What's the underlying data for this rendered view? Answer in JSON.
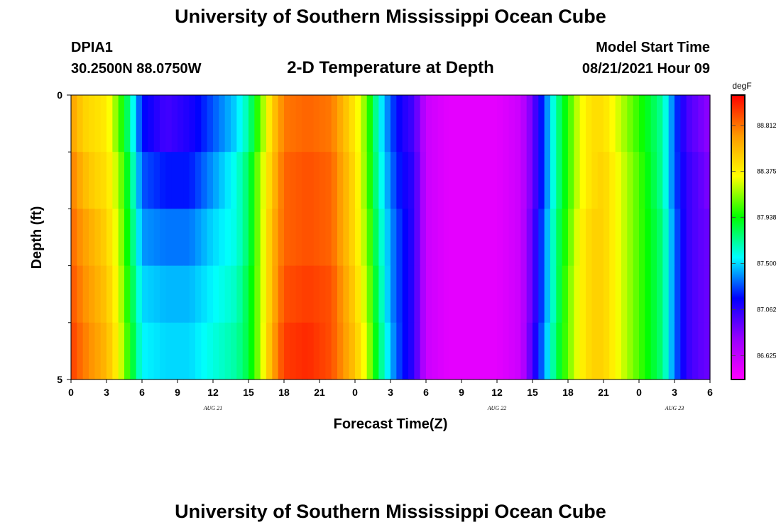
{
  "header": {
    "main_title": "University of Southern Mississippi Ocean Cube",
    "station_id": "DPIA1",
    "coordinates": "30.2500N  88.0750W",
    "plot_title": "2-D Temperature at Depth",
    "model_start_label": "Model Start Time",
    "model_start_value": "08/21/2021 Hour 09"
  },
  "footer": {
    "title": "University of Southern Mississippi Ocean Cube"
  },
  "chart_data": {
    "type": "heatmap",
    "title": "2-D Temperature at Depth",
    "xlabel": "Forecast Time(Z)",
    "ylabel": "Depth (ft)",
    "x_range_hours": [
      0,
      54
    ],
    "x_tick_labels": [
      "0",
      "3",
      "6",
      "9",
      "12",
      "15",
      "18",
      "21",
      "0",
      "3",
      "6",
      "9",
      "12",
      "15",
      "18",
      "21",
      "0",
      "3",
      "6"
    ],
    "date_labels": [
      {
        "text": "AUG 21",
        "hour": 12
      },
      {
        "text": "AUG 22",
        "hour": 36
      },
      {
        "text": "AUG 23",
        "hour": 51
      }
    ],
    "y_range": [
      0,
      5
    ],
    "y_tick_labels": [
      "0",
      "5"
    ],
    "y_minor_ticks": [
      1,
      2,
      3,
      4
    ],
    "depth_layers": [
      0.5,
      1.5,
      2.5,
      3.5,
      4.5
    ],
    "colorbar": {
      "unit": "degF",
      "min": 86.4,
      "max": 89.1,
      "tick_labels": [
        "88.812",
        "88.375",
        "87.938",
        "87.500",
        "87.062",
        "86.625"
      ],
      "tick_values": [
        88.812,
        88.375,
        87.938,
        87.5,
        87.062,
        86.625
      ],
      "colors": [
        "#ff00ff",
        "#9900ff",
        "#0000ff",
        "#00ffff",
        "#00ff00",
        "#ffff00",
        "#ff9900",
        "#ff0000"
      ]
    },
    "temperature_keyframes": {
      "hours": [
        0,
        1,
        2,
        3,
        4,
        5,
        6,
        8,
        10,
        12,
        14,
        15,
        16,
        17,
        18,
        20,
        22,
        24,
        25,
        26,
        27,
        28,
        29,
        30,
        32,
        34,
        36,
        38,
        39,
        40,
        41,
        42,
        43,
        44,
        45,
        46,
        48,
        50,
        51,
        52,
        53,
        54
      ],
      "layers": [
        [
          88.7,
          88.5,
          88.45,
          88.4,
          88.1,
          87.7,
          87.2,
          87.0,
          87.1,
          87.3,
          87.5,
          87.7,
          88.1,
          88.5,
          88.8,
          88.85,
          88.8,
          88.4,
          88.1,
          87.6,
          87.3,
          87.1,
          87.0,
          86.6,
          86.5,
          86.5,
          86.5,
          86.6,
          86.9,
          87.3,
          87.7,
          88.0,
          88.3,
          88.45,
          88.45,
          88.3,
          88.0,
          87.7,
          87.3,
          87.0,
          86.9,
          86.8
        ],
        [
          88.8,
          88.6,
          88.5,
          88.45,
          88.2,
          87.8,
          87.3,
          87.2,
          87.2,
          87.4,
          87.6,
          87.8,
          88.2,
          88.55,
          88.85,
          88.9,
          88.85,
          88.45,
          88.1,
          87.65,
          87.35,
          87.15,
          87.05,
          86.6,
          86.5,
          86.5,
          86.5,
          86.6,
          86.9,
          87.3,
          87.7,
          88.0,
          88.3,
          88.45,
          88.5,
          88.35,
          88.05,
          87.7,
          87.3,
          87.05,
          86.95,
          86.85
        ],
        [
          88.85,
          88.7,
          88.6,
          88.5,
          88.25,
          87.85,
          87.4,
          87.35,
          87.35,
          87.5,
          87.6,
          87.8,
          88.2,
          88.6,
          88.85,
          88.9,
          88.85,
          88.45,
          88.15,
          87.7,
          87.4,
          87.2,
          87.05,
          86.6,
          86.5,
          86.5,
          86.5,
          86.6,
          86.95,
          87.35,
          87.75,
          88.05,
          88.35,
          88.5,
          88.5,
          88.35,
          88.05,
          87.75,
          87.35,
          87.05,
          86.95,
          86.9
        ],
        [
          88.9,
          88.75,
          88.65,
          88.55,
          88.3,
          87.9,
          87.5,
          87.45,
          87.45,
          87.55,
          87.65,
          87.85,
          88.2,
          88.6,
          88.9,
          88.95,
          88.9,
          88.5,
          88.2,
          87.75,
          87.4,
          87.2,
          87.05,
          86.6,
          86.5,
          86.5,
          86.5,
          86.6,
          86.95,
          87.35,
          87.75,
          88.1,
          88.35,
          88.5,
          88.5,
          88.35,
          88.05,
          87.75,
          87.35,
          87.05,
          86.95,
          86.9
        ],
        [
          88.95,
          88.8,
          88.7,
          88.6,
          88.35,
          87.95,
          87.55,
          87.5,
          87.5,
          87.6,
          87.7,
          87.85,
          88.2,
          88.65,
          88.95,
          89.0,
          88.9,
          88.55,
          88.25,
          87.8,
          87.45,
          87.2,
          87.05,
          86.6,
          86.5,
          86.5,
          86.5,
          86.6,
          87.0,
          87.4,
          87.8,
          88.1,
          88.35,
          88.5,
          88.5,
          88.35,
          88.05,
          87.75,
          87.35,
          87.05,
          86.95,
          86.9
        ]
      ]
    }
  }
}
